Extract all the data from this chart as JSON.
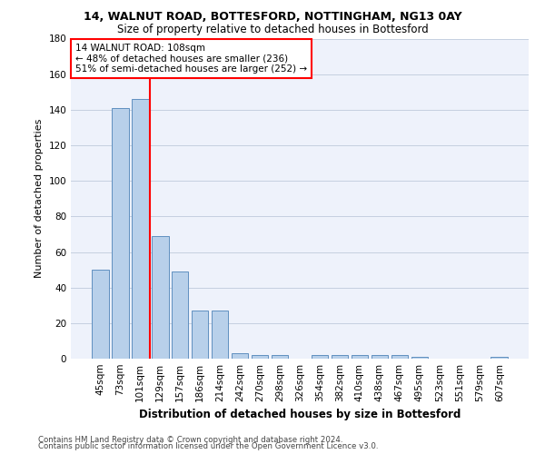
{
  "title1": "14, WALNUT ROAD, BOTTESFORD, NOTTINGHAM, NG13 0AY",
  "title2": "Size of property relative to detached houses in Bottesford",
  "xlabel": "Distribution of detached houses by size in Bottesford",
  "ylabel": "Number of detached properties",
  "categories": [
    "45sqm",
    "73sqm",
    "101sqm",
    "129sqm",
    "157sqm",
    "186sqm",
    "214sqm",
    "242sqm",
    "270sqm",
    "298sqm",
    "326sqm",
    "354sqm",
    "382sqm",
    "410sqm",
    "438sqm",
    "467sqm",
    "495sqm",
    "523sqm",
    "551sqm",
    "579sqm",
    "607sqm"
  ],
  "values": [
    50,
    141,
    146,
    69,
    49,
    27,
    27,
    3,
    2,
    2,
    0,
    2,
    2,
    2,
    2,
    2,
    1,
    0,
    0,
    0,
    1
  ],
  "bar_color": "#b8d0ea",
  "bar_edge_color": "#6090c0",
  "red_line_x": 2.5,
  "annotation_text": "14 WALNUT ROAD: 108sqm\n← 48% of detached houses are smaller (236)\n51% of semi-detached houses are larger (252) →",
  "annotation_box_color": "white",
  "annotation_box_edge": "red",
  "ylim": [
    0,
    180
  ],
  "yticks": [
    0,
    20,
    40,
    60,
    80,
    100,
    120,
    140,
    160,
    180
  ],
  "footer1": "Contains HM Land Registry data © Crown copyright and database right 2024.",
  "footer2": "Contains public sector information licensed under the Open Government Licence v3.0.",
  "bg_color": "#eef2fb",
  "grid_color": "#c5cfe0",
  "title1_fontsize": 9.0,
  "title2_fontsize": 8.5,
  "ylabel_fontsize": 8.0,
  "xlabel_fontsize": 8.5,
  "tick_fontsize": 7.5,
  "footer_fontsize": 6.2
}
